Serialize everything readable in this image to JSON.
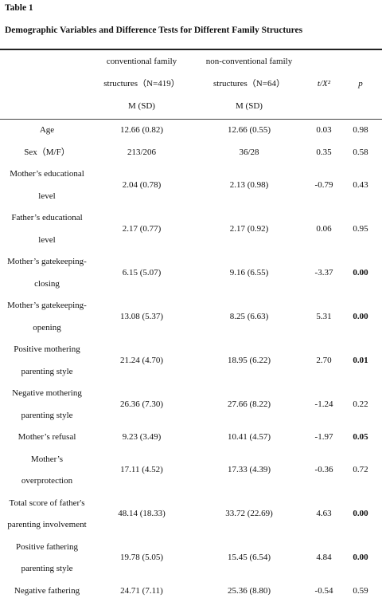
{
  "header": {
    "title": "Table 1",
    "subtitle": "Demographic Variables and Difference Tests for Different Family Structures"
  },
  "table": {
    "columns": [
      [
        "conventional family",
        "structures（N=419）",
        "M (SD)"
      ],
      [
        "non-conventional family",
        "structures（N=64）",
        "M (SD)"
      ],
      [
        "t/X²"
      ],
      [
        "p"
      ]
    ],
    "rows": [
      {
        "label": [
          "Age"
        ],
        "cells": [
          "12.66 (0.82)",
          "12.66 (0.55)",
          "0.03",
          "0.98"
        ],
        "p_bold": false
      },
      {
        "label": [
          "Sex（M/F）"
        ],
        "cells": [
          "213/206",
          "36/28",
          "0.35",
          "0.58"
        ],
        "p_bold": false
      },
      {
        "label": [
          "Mother’s educational",
          "level"
        ],
        "cells": [
          "2.04 (0.78)",
          "2.13 (0.98)",
          "-0.79",
          "0.43"
        ],
        "p_bold": false
      },
      {
        "label": [
          "Father’s educational",
          "level"
        ],
        "cells": [
          "2.17 (0.77)",
          "2.17 (0.92)",
          "0.06",
          "0.95"
        ],
        "p_bold": false
      },
      {
        "label": [
          "Mother’s gatekeeping-",
          "closing"
        ],
        "cells": [
          "6.15 (5.07)",
          "9.16 (6.55)",
          "-3.37",
          "0.00"
        ],
        "p_bold": true
      },
      {
        "label": [
          "Mother’s gatekeeping-",
          "opening"
        ],
        "cells": [
          "13.08 (5.37)",
          "8.25 (6.63)",
          "5.31",
          "0.00"
        ],
        "p_bold": true
      },
      {
        "label": [
          "Positive mothering",
          "parenting style"
        ],
        "cells": [
          "21.24 (4.70)",
          "18.95 (6.22)",
          "2.70",
          "0.01"
        ],
        "p_bold": true
      },
      {
        "label": [
          "Negative mothering",
          "parenting style"
        ],
        "cells": [
          "26.36 (7.30)",
          "27.66 (8.22)",
          "-1.24",
          "0.22"
        ],
        "p_bold": false
      },
      {
        "label": [
          "Mother’s refusal"
        ],
        "cells": [
          "9.23 (3.49)",
          "10.41 (4.57)",
          "-1.97",
          "0.05"
        ],
        "p_bold": true
      },
      {
        "label": [
          "Mother’s",
          "overprotection"
        ],
        "cells": [
          "17.11 (4.52)",
          "17.33 (4.39)",
          "-0.36",
          "0.72"
        ],
        "p_bold": false
      },
      {
        "label": [
          "Total score of father's",
          "parenting involvement"
        ],
        "cells": [
          "48.14 (18.33)",
          "33.72 (22.69)",
          "4.63",
          "0.00"
        ],
        "p_bold": true
      },
      {
        "label": [
          "Positive fathering",
          "parenting style"
        ],
        "cells": [
          "19.78 (5.05)",
          "15.45 (6.54)",
          "4.84",
          "0.00"
        ],
        "p_bold": true
      },
      {
        "label": [
          "Negative fathering"
        ],
        "cells": [
          "24.71 (7.11)",
          "25.36 (8.80)",
          "-0.54",
          "0.59"
        ],
        "p_bold": false
      }
    ]
  }
}
